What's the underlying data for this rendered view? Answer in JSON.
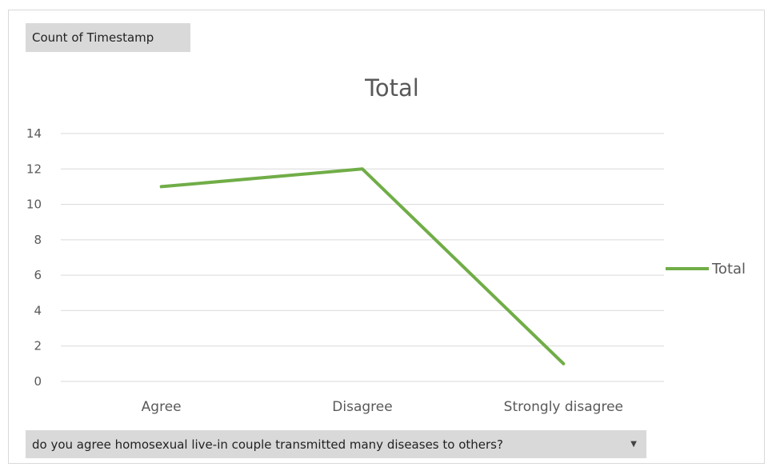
{
  "values_field": {
    "label": "Count of Timestamp"
  },
  "axis_field": {
    "label": "do you agree homosexual live-in couple transmitted many diseases to others?",
    "dropdown_icon": "chevron-down-icon"
  },
  "colors": {
    "series": "#70ad47",
    "grid": "#d9d9d9",
    "text": "#595959",
    "field_button": "#d9d9d9"
  },
  "chart_data": {
    "type": "line",
    "title": "Total",
    "categories": [
      "Agree",
      "Disagree",
      "Strongly disagree"
    ],
    "series": [
      {
        "name": "Total",
        "values": [
          11,
          12,
          1
        ]
      }
    ],
    "ylim": [
      0,
      14
    ],
    "yticks": [
      0,
      2,
      4,
      6,
      8,
      10,
      12,
      14
    ],
    "grid": true,
    "legend": "right"
  }
}
